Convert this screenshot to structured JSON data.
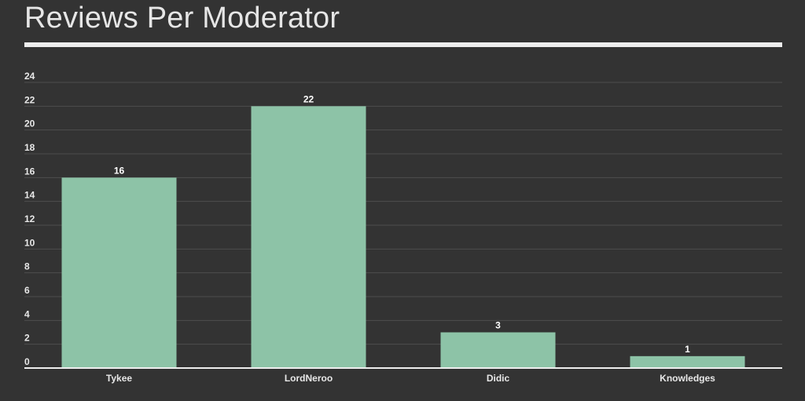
{
  "title": "Reviews Per Moderator",
  "colors": {
    "background": "#333333",
    "bar": "#8dc3a7",
    "grid": "#4e4e4e",
    "text": "#e8e8e8"
  },
  "chart_data": {
    "type": "bar",
    "title": "Reviews Per Moderator",
    "xlabel": "",
    "ylabel": "",
    "categories": [
      "Tykee",
      "LordNeroo",
      "Didic",
      "Knowledges"
    ],
    "values": [
      16,
      22,
      3,
      1
    ],
    "ylim": [
      0,
      24
    ],
    "yticks": [
      0,
      2,
      4,
      6,
      8,
      10,
      12,
      14,
      16,
      18,
      20,
      22,
      24
    ],
    "grid": true,
    "legend": "none",
    "data_labels": true
  }
}
